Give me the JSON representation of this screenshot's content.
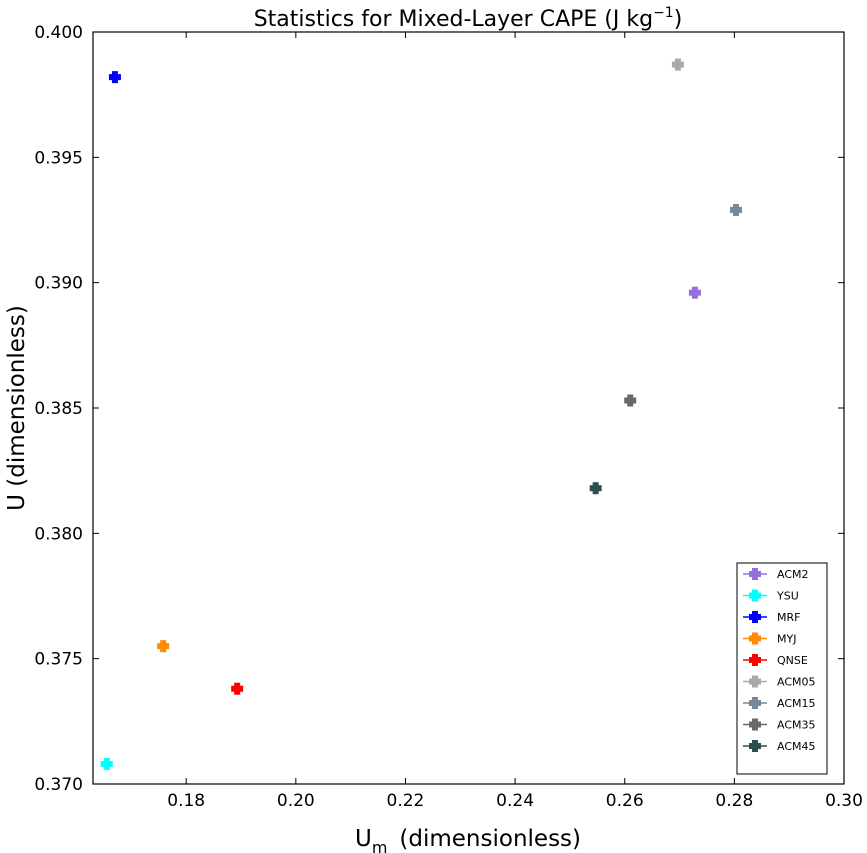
{
  "chart_data": {
    "type": "scatter",
    "title": "Statistics for Mixed-Layer CAPE (J kg",
    "title_superscript": "−1",
    "title_close": ")",
    "xlabel": "U",
    "xlabel_subscript": "m",
    "xlabel_suffix": "(dimensionless)",
    "ylabel": "U (dimensionless)",
    "xlim": [
      0.163,
      0.3
    ],
    "ylim": [
      0.37,
      0.4
    ],
    "xticks": [
      0.18,
      0.2,
      0.22,
      0.24,
      0.26,
      0.28,
      0.3
    ],
    "xtick_labels": [
      "0.18",
      "0.20",
      "0.22",
      "0.24",
      "0.26",
      "0.28",
      "0.30"
    ],
    "yticks": [
      0.37,
      0.375,
      0.38,
      0.385,
      0.39,
      0.395,
      0.4
    ],
    "ytick_labels": [
      "0.370",
      "0.375",
      "0.380",
      "0.385",
      "0.390",
      "0.395",
      "0.400"
    ],
    "grid": false,
    "legend_position": "lower-right",
    "series": [
      {
        "name": "ACM2",
        "color": "#9370db",
        "x": 0.2728,
        "y": 0.3896
      },
      {
        "name": "YSU",
        "color": "#00ffff",
        "x": 0.1655,
        "y": 0.3708
      },
      {
        "name": "MRF",
        "color": "#0000ff",
        "x": 0.167,
        "y": 0.3982
      },
      {
        "name": "MYJ",
        "color": "#ff8c00",
        "x": 0.1758,
        "y": 0.3755
      },
      {
        "name": "QNSE",
        "color": "#ff0000",
        "x": 0.1893,
        "y": 0.3738
      },
      {
        "name": "ACM05",
        "color": "#a9a9a9",
        "x": 0.2697,
        "y": 0.3987
      },
      {
        "name": "ACM15",
        "color": "#778899",
        "x": 0.2803,
        "y": 0.3929
      },
      {
        "name": "ACM35",
        "color": "#696969",
        "x": 0.261,
        "y": 0.3853
      },
      {
        "name": "ACM45",
        "color": "#2f4f4f",
        "x": 0.2547,
        "y": 0.3818
      }
    ]
  }
}
